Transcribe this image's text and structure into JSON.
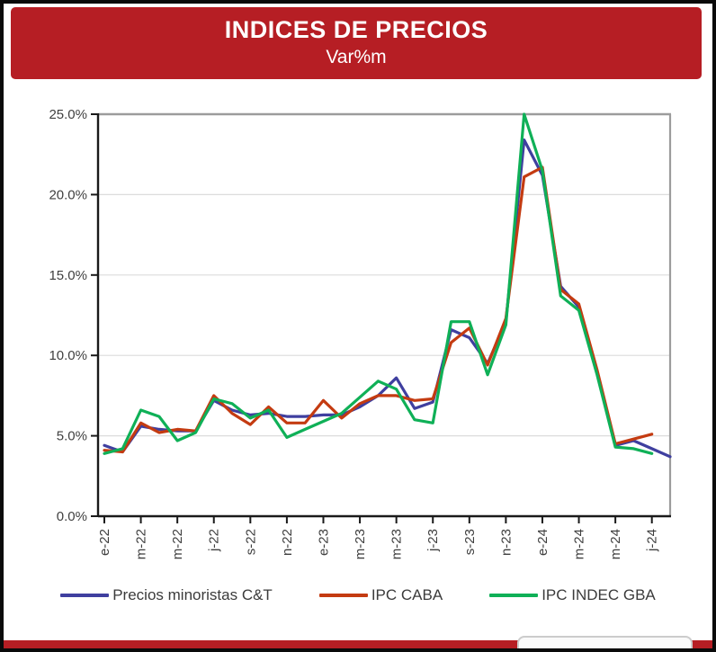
{
  "header": {
    "title": "INDICES DE PRECIOS",
    "subtitle": "Var%m",
    "background_color": "#B61E24",
    "text_color": "#FFFFFF"
  },
  "chart_data": {
    "type": "line",
    "title": "INDICES DE PRECIOS",
    "subtitle": "Var%m",
    "unit": "% monthly variation",
    "grid": "horizontal",
    "legend_position": "bottom",
    "ylim": [
      0,
      25
    ],
    "y_tick_step": 5,
    "y_tick_labels": [
      "0.0%",
      "5.0%",
      "10.0%",
      "15.0%",
      "20.0%",
      "25.0%"
    ],
    "x": [
      "e-22",
      "f-22",
      "m-22",
      "a-22",
      "m-22",
      "j-22",
      "j-22",
      "a-22",
      "s-22",
      "o-22",
      "n-22",
      "d-22",
      "e-23",
      "f-23",
      "m-23",
      "a-23",
      "m-23",
      "j-23",
      "j-23",
      "a-23",
      "s-23",
      "o-23",
      "n-23",
      "d-23",
      "e-24",
      "f-24",
      "m-24",
      "a-24",
      "m-24",
      "j-24",
      "j-24",
      "a-24"
    ],
    "x_tick_every": 2,
    "x_tick_labels_shown": [
      "e-22",
      "m-22",
      "m-22",
      "j-22",
      "s-22",
      "n-22",
      "e-23",
      "m-23",
      "m-23",
      "j-23",
      "s-23",
      "n-23",
      "e-24",
      "m-24",
      "m-24",
      "j-24"
    ],
    "series": [
      {
        "name": "Precios minoristas C&T",
        "color": "#3F3F9F",
        "values": [
          4.4,
          4.0,
          5.6,
          5.4,
          5.3,
          5.3,
          7.2,
          6.6,
          6.3,
          6.4,
          6.2,
          6.2,
          6.3,
          6.3,
          6.8,
          7.5,
          8.6,
          6.7,
          7.1,
          11.6,
          11.1,
          9.5,
          12.1,
          23.4,
          21.2,
          14.3,
          13.0,
          9.0,
          4.4,
          4.7,
          4.2,
          3.7
        ]
      },
      {
        "name": "IPC CABA",
        "color": "#C43B11",
        "values": [
          4.1,
          4.0,
          5.8,
          5.2,
          5.4,
          5.3,
          7.5,
          6.4,
          5.7,
          6.8,
          5.8,
          5.8,
          7.2,
          6.1,
          7.0,
          7.5,
          7.5,
          7.2,
          7.3,
          10.8,
          11.7,
          9.4,
          12.3,
          21.1,
          21.7,
          14.1,
          13.2,
          9.1,
          4.5,
          4.8,
          5.1,
          null
        ]
      },
      {
        "name": "IPC INDEC GBA",
        "color": "#0FB057",
        "values": [
          3.9,
          4.2,
          6.6,
          6.2,
          4.7,
          5.2,
          7.3,
          7.0,
          6.1,
          6.6,
          4.9,
          5.4,
          5.9,
          6.4,
          7.4,
          8.4,
          7.9,
          6.0,
          5.8,
          12.1,
          12.1,
          8.8,
          11.9,
          25.0,
          21.5,
          13.7,
          12.8,
          8.8,
          4.3,
          4.2,
          3.9,
          null
        ]
      }
    ]
  },
  "footer": {
    "accent_color": "#B61E24"
  }
}
